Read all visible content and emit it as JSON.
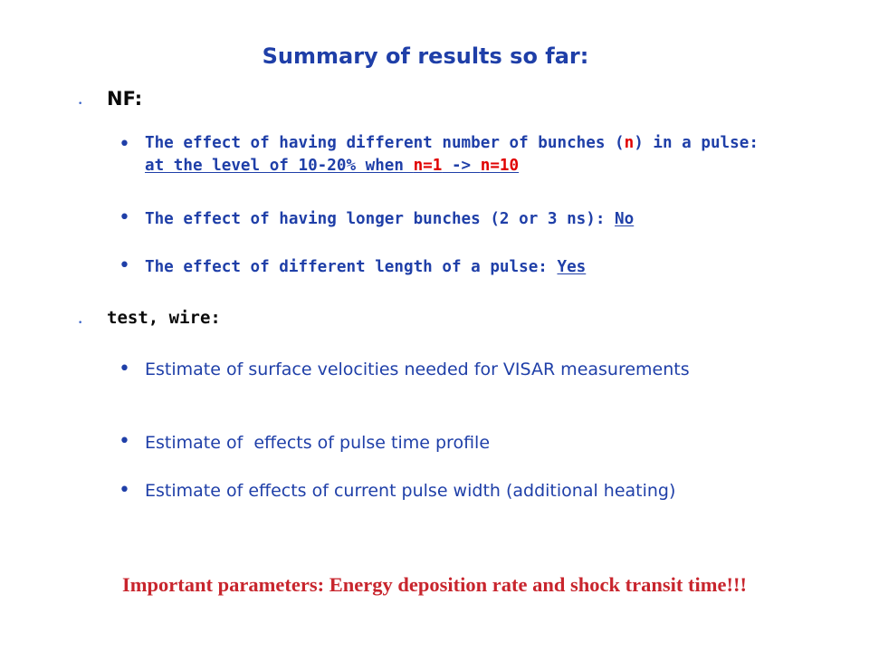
{
  "title": "Summary of results so far:",
  "sections": [
    {
      "heading": "NF:",
      "items": [
        {
          "plain_before": "The effect of having different number of bunches (",
          "n": "n",
          "plain_mid": ") in a pulse: ",
          "underlined": "at the level of 10-20% when ",
          "red1": "n=1",
          "arrow": " -> ",
          "red2": "n=10"
        },
        {
          "text": "The effect of having longer bunches (2 or 3 ns): ",
          "answer": "No"
        },
        {
          "text": "The effect of different length of a pulse: ",
          "answer": "Yes"
        }
      ]
    },
    {
      "heading": "test, wire:",
      "items": [
        {
          "text": "Estimate of surface velocities needed for VISAR measurements"
        },
        {
          "text": "Estimate of  effects of pulse time profile"
        },
        {
          "text": "Estimate of effects of current pulse width (additional heating)"
        }
      ]
    }
  ],
  "footer": "Important parameters: Energy deposition rate and shock transit time!!!",
  "colors": {
    "title": "#1f3fa8",
    "body": "#1f3fa8",
    "highlight": "#e00000",
    "footer": "#c8252d"
  }
}
